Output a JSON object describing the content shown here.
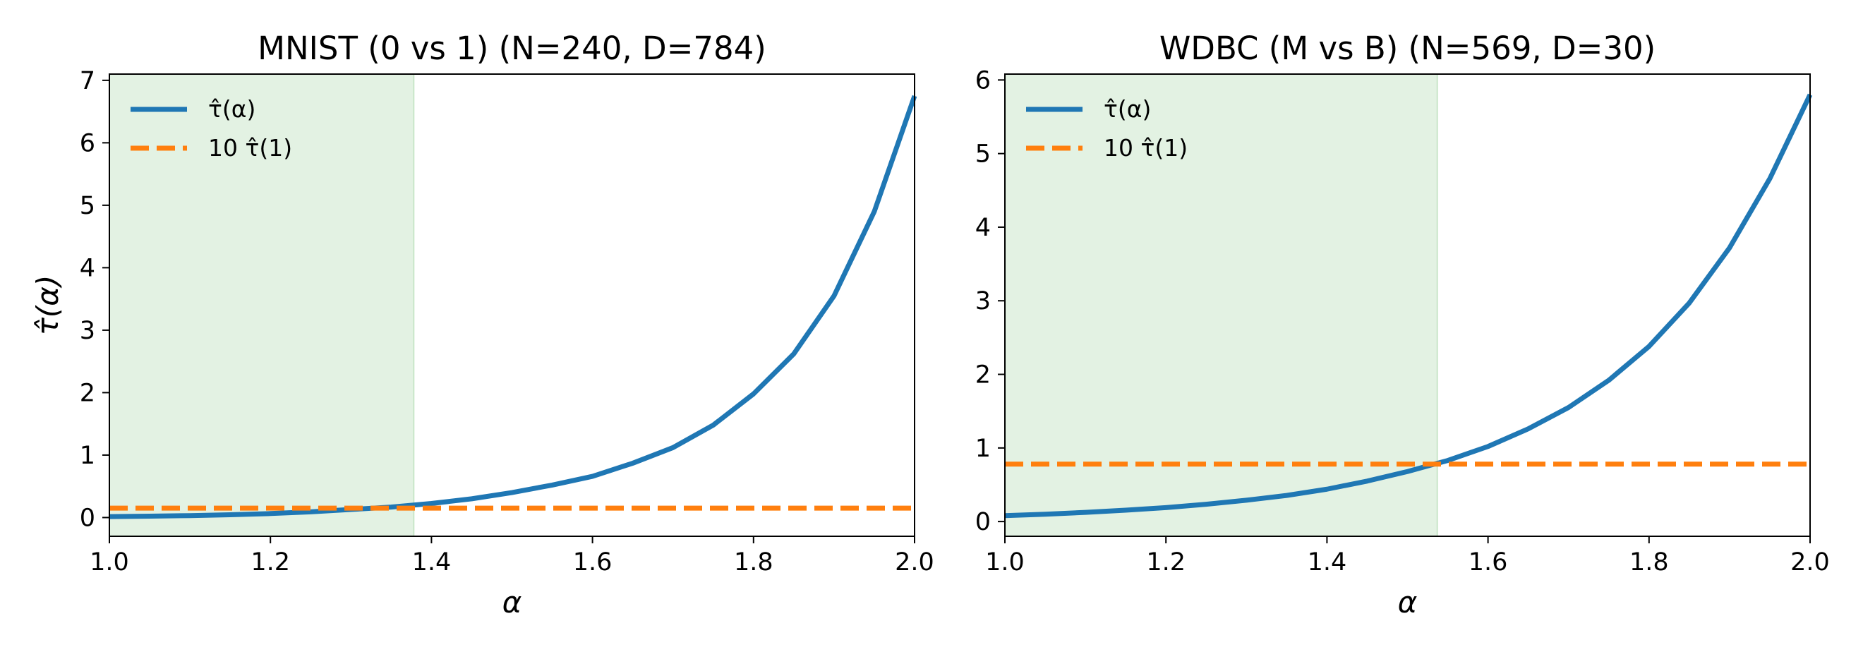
{
  "chart_data": [
    {
      "type": "line",
      "title": "MNIST (0 vs 1) (N=240, D=784)",
      "xlabel": "α",
      "ylabel": "τ̂(α)",
      "xlim": [
        1.0,
        2.0
      ],
      "ylim": [
        -0.3,
        7.1
      ],
      "xticks": [
        1.0,
        1.2,
        1.4,
        1.6,
        1.8,
        2.0
      ],
      "xtick_labels": [
        "1.0",
        "1.2",
        "1.4",
        "1.6",
        "1.8",
        "2.0"
      ],
      "yticks": [
        0,
        1,
        2,
        3,
        4,
        5,
        6,
        7
      ],
      "ytick_labels": [
        "0",
        "1",
        "2",
        "3",
        "4",
        "5",
        "6",
        "7"
      ],
      "shaded_region": {
        "x_from": 1.0,
        "x_to": 1.378,
        "color": "#e3f2e3"
      },
      "legend": {
        "position": "top-left",
        "entries": [
          "τ̂(α)",
          "10 τ̂(1)"
        ]
      },
      "series": [
        {
          "name": "τ̂(α)",
          "style": "solid",
          "color": "#1f77b4",
          "x": [
            1.0,
            1.05,
            1.1,
            1.15,
            1.2,
            1.25,
            1.3,
            1.35,
            1.4,
            1.45,
            1.5,
            1.55,
            1.6,
            1.65,
            1.7,
            1.75,
            1.8,
            1.85,
            1.9,
            1.95,
            2.0
          ],
          "y": [
            0.015,
            0.022,
            0.031,
            0.045,
            0.064,
            0.091,
            0.129,
            0.168,
            0.225,
            0.3,
            0.4,
            0.52,
            0.66,
            0.87,
            1.12,
            1.48,
            1.98,
            2.62,
            3.55,
            4.9,
            6.75
          ]
        },
        {
          "name": "10 τ̂(1)",
          "style": "dashed",
          "color": "#ff7f0e",
          "x": [
            1.0,
            2.0
          ],
          "y": [
            0.15,
            0.15
          ]
        }
      ]
    },
    {
      "type": "line",
      "title": "WDBC (M vs B) (N=569, D=30)",
      "xlabel": "α",
      "ylabel": "",
      "xlim": [
        1.0,
        2.0
      ],
      "ylim": [
        -0.2,
        6.08
      ],
      "xticks": [
        1.0,
        1.2,
        1.4,
        1.6,
        1.8,
        2.0
      ],
      "xtick_labels": [
        "1.0",
        "1.2",
        "1.4",
        "1.6",
        "1.8",
        "2.0"
      ],
      "yticks": [
        0,
        1,
        2,
        3,
        4,
        5,
        6
      ],
      "ytick_labels": [
        "0",
        "1",
        "2",
        "3",
        "4",
        "5",
        "6"
      ],
      "shaded_region": {
        "x_from": 1.0,
        "x_to": 1.537,
        "color": "#e3f2e3"
      },
      "legend": {
        "position": "top-left",
        "entries": [
          "τ̂(α)",
          "10 τ̂(1)"
        ]
      },
      "series": [
        {
          "name": "τ̂(α)",
          "style": "solid",
          "color": "#1f77b4",
          "x": [
            1.0,
            1.05,
            1.1,
            1.15,
            1.2,
            1.25,
            1.3,
            1.35,
            1.4,
            1.45,
            1.5,
            1.55,
            1.6,
            1.65,
            1.7,
            1.75,
            1.8,
            1.85,
            1.9,
            1.95,
            2.0
          ],
          "y": [
            0.08,
            0.1,
            0.125,
            0.155,
            0.19,
            0.235,
            0.29,
            0.355,
            0.44,
            0.55,
            0.68,
            0.83,
            1.02,
            1.26,
            1.55,
            1.92,
            2.38,
            2.97,
            3.72,
            4.66,
            5.8
          ]
        },
        {
          "name": "10 τ̂(1)",
          "style": "dashed",
          "color": "#ff7f0e",
          "x": [
            1.0,
            2.0
          ],
          "y": [
            0.78,
            0.78
          ]
        }
      ]
    }
  ]
}
